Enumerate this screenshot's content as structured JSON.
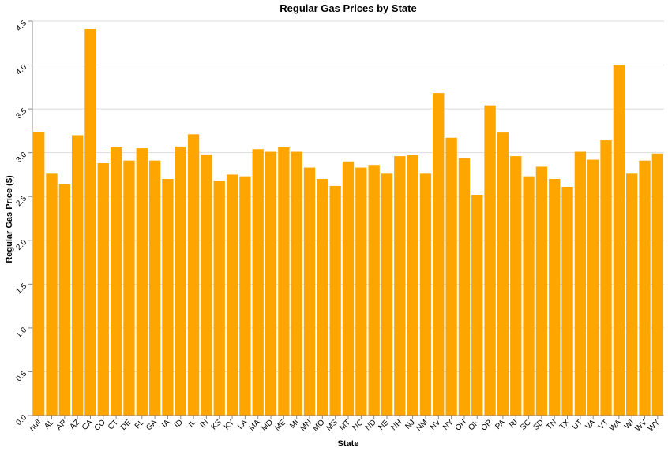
{
  "chart_data": {
    "type": "bar",
    "title": "Regular Gas Prices by State",
    "xlabel": "State",
    "ylabel": "Regular Gas Price ($)",
    "ylim": [
      0,
      4.5
    ],
    "yticks": [
      "0.0",
      "0.5",
      "1.0",
      "1.5",
      "2.0",
      "2.5",
      "3.0",
      "3.5",
      "4.0",
      "4.5"
    ],
    "grid": true,
    "bar_color": "#FFA500",
    "categories": [
      "null",
      "AL",
      "AR",
      "AZ",
      "CA",
      "CO",
      "CT",
      "DE",
      "FL",
      "GA",
      "IA",
      "ID",
      "IL",
      "IN",
      "KS",
      "KY",
      "LA",
      "MA",
      "MD",
      "ME",
      "MI",
      "MN",
      "MO",
      "MS",
      "MT",
      "NC",
      "ND",
      "NE",
      "NH",
      "NJ",
      "NM",
      "NV",
      "NY",
      "OH",
      "OK",
      "OR",
      "PA",
      "RI",
      "SC",
      "SD",
      "TN",
      "TX",
      "UT",
      "VA",
      "VT",
      "WA",
      "WI",
      "WV",
      "WY"
    ],
    "values": [
      3.24,
      2.76,
      2.64,
      3.2,
      4.41,
      2.88,
      3.06,
      2.91,
      3.05,
      2.91,
      2.7,
      3.07,
      3.21,
      2.98,
      2.68,
      2.75,
      2.73,
      3.04,
      3.01,
      3.06,
      3.01,
      2.83,
      2.7,
      2.62,
      2.9,
      2.83,
      2.86,
      2.76,
      2.96,
      2.97,
      2.76,
      3.68,
      3.17,
      2.94,
      2.52,
      3.54,
      3.23,
      2.96,
      2.73,
      2.84,
      2.7,
      2.61,
      3.01,
      2.92,
      3.14,
      4.0,
      2.76,
      2.91,
      2.99
    ]
  }
}
